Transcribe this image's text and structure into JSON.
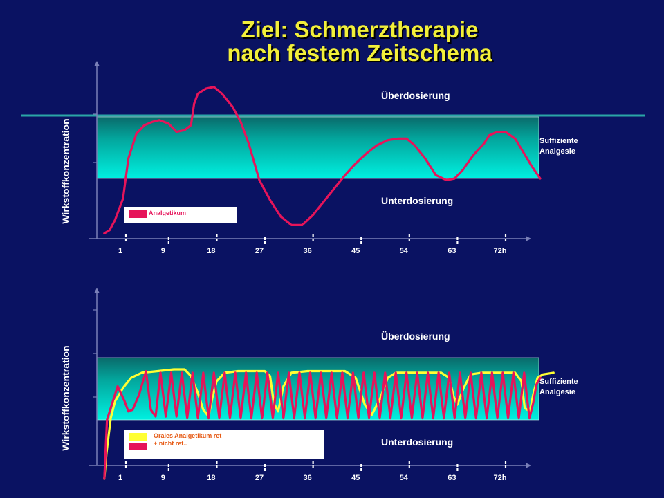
{
  "title": {
    "line1": "Ziel: Schmerztherapie",
    "line2": "nach festem Zeitschema"
  },
  "colors": {
    "background": "#0a1262",
    "band_top": "#0a6a6a",
    "band_bottom": "#00f0e0",
    "series_red": "#e6145a",
    "series_yellow": "#ffff33",
    "title": "#f2ef3a",
    "legend_text": "#e65a14"
  },
  "chart_data": [
    {
      "type": "line",
      "ylabel": "Wirkstoffkonzentration",
      "xlabel": "",
      "x_ticks": [
        "1",
        "9",
        "18",
        "27",
        "36",
        "45",
        "54",
        "63",
        "72h"
      ],
      "xlim": [
        -2,
        81
      ],
      "ylim": [
        0,
        100
      ],
      "band": {
        "low": 35,
        "high": 72
      },
      "zones": {
        "above": "Überdosierung",
        "band": "Suffiziente Analgesie",
        "below": "Unterdosierung"
      },
      "legend": {
        "labels": [
          "Analgetikum"
        ]
      },
      "series": [
        {
          "color": "#e6145a",
          "points": [
            [
              -2,
              2
            ],
            [
              -1,
              4
            ],
            [
              0,
              10
            ],
            [
              1.5,
              23
            ],
            [
              2.5,
              47
            ],
            [
              4,
              62
            ],
            [
              5.5,
              67
            ],
            [
              7,
              69
            ],
            [
              8.3,
              70
            ],
            [
              10,
              68
            ],
            [
              11.5,
              63
            ],
            [
              13,
              64
            ],
            [
              14.2,
              67
            ],
            [
              14.8,
              80
            ],
            [
              15.5,
              86
            ],
            [
              17,
              89
            ],
            [
              18.5,
              90
            ],
            [
              20,
              86
            ],
            [
              22,
              78
            ],
            [
              23.5,
              69
            ],
            [
              25,
              56
            ],
            [
              27,
              34
            ],
            [
              29,
              22
            ],
            [
              31,
              12
            ],
            [
              33,
              7
            ],
            [
              35,
              7
            ],
            [
              37,
              13
            ],
            [
              39,
              21
            ],
            [
              41,
              29
            ],
            [
              43,
              37
            ],
            [
              45,
              44
            ],
            [
              47,
              50
            ],
            [
              49,
              55
            ],
            [
              51,
              58
            ],
            [
              53,
              59
            ],
            [
              54.5,
              59
            ],
            [
              56,
              55
            ],
            [
              58,
              47
            ],
            [
              60,
              37
            ],
            [
              62,
              34
            ],
            [
              63.5,
              35
            ],
            [
              65,
              40
            ],
            [
              67,
              49
            ],
            [
              69,
              56
            ],
            [
              70,
              61
            ],
            [
              71.5,
              63
            ],
            [
              73,
              63
            ],
            [
              74.8,
              59
            ],
            [
              76.5,
              50
            ],
            [
              77.8,
              43
            ],
            [
              79.5,
              35
            ]
          ]
        }
      ]
    },
    {
      "type": "line",
      "ylabel": "Wirkstoffkonzentration",
      "xlabel": "",
      "x_ticks": [
        "1",
        "9",
        "18",
        "27",
        "36",
        "45",
        "54",
        "63",
        "72h"
      ],
      "xlim": [
        -2,
        81
      ],
      "ylim": [
        0,
        100
      ],
      "band": {
        "low": 35,
        "high": 72
      },
      "zones": {
        "above": "Überdosierung",
        "band": "Suffiziente Analgesie",
        "below": "Unterdosierung"
      },
      "legend": {
        "labels": [
          "Orales Analgetikum ret",
          "+ nicht ret.."
        ]
      },
      "series": [
        {
          "color": "#ffff33",
          "points": [
            [
              -2,
              0
            ],
            [
              -1.6,
              15
            ],
            [
              -0.8,
              36
            ],
            [
              0,
              46
            ],
            [
              1.5,
              54
            ],
            [
              3,
              60
            ],
            [
              5,
              63
            ],
            [
              8,
              64
            ],
            [
              11,
              65
            ],
            [
              13,
              65
            ],
            [
              14.2,
              61
            ],
            [
              15.5,
              51
            ],
            [
              16.5,
              41
            ],
            [
              17.5,
              37
            ],
            [
              18.2,
              48
            ],
            [
              19,
              58
            ],
            [
              20.5,
              63
            ],
            [
              23,
              64
            ],
            [
              26,
              64
            ],
            [
              28,
              64
            ],
            [
              29,
              61
            ],
            [
              29.7,
              45
            ],
            [
              30.5,
              40
            ],
            [
              31.5,
              55
            ],
            [
              33,
              63
            ],
            [
              36,
              64
            ],
            [
              40,
              64
            ],
            [
              43,
              64
            ],
            [
              45,
              60
            ],
            [
              46.7,
              44
            ],
            [
              48,
              38
            ],
            [
              49.5,
              47
            ],
            [
              51,
              60
            ],
            [
              52.5,
              63
            ],
            [
              55,
              63
            ],
            [
              59,
              63
            ],
            [
              61,
              63
            ],
            [
              62.5,
              60
            ],
            [
              63.3,
              49
            ],
            [
              64,
              44
            ],
            [
              65.2,
              54
            ],
            [
              66.5,
              62
            ],
            [
              68.5,
              63
            ],
            [
              73,
              63
            ],
            [
              74.8,
              63
            ],
            [
              76,
              58
            ],
            [
              76.6,
              42
            ],
            [
              77.6,
              40
            ],
            [
              78.2,
              50
            ],
            [
              79,
              60
            ],
            [
              80,
              62
            ],
            [
              82,
              63
            ]
          ]
        },
        {
          "color": "#e6145a",
          "points": [
            [
              -2,
              0
            ],
            [
              -1.5,
              35
            ],
            [
              -1,
              40
            ],
            [
              0.5,
              55
            ],
            [
              1.8,
              46
            ],
            [
              2.5,
              40
            ],
            [
              3.3,
              41
            ],
            [
              4.5,
              50
            ],
            [
              5.8,
              64
            ],
            [
              6.7,
              41
            ],
            [
              7.6,
              37
            ],
            [
              8.5,
              63
            ],
            [
              9.5,
              37
            ],
            [
              10.5,
              63
            ],
            [
              11.5,
              37
            ],
            [
              12.5,
              63
            ],
            [
              13.5,
              36
            ],
            [
              14.5,
              63
            ],
            [
              15.5,
              36
            ],
            [
              16.5,
              63
            ],
            [
              17.5,
              36
            ],
            [
              18.5,
              63
            ],
            [
              19.5,
              36
            ],
            [
              20.5,
              63
            ],
            [
              21.5,
              36
            ],
            [
              22.5,
              63
            ],
            [
              23.5,
              36
            ],
            [
              24.5,
              63
            ],
            [
              25.5,
              36
            ],
            [
              26.5,
              63
            ],
            [
              27.5,
              36
            ],
            [
              28.5,
              63
            ],
            [
              29.5,
              36
            ],
            [
              30.5,
              63
            ],
            [
              31.5,
              36
            ],
            [
              32.5,
              63
            ],
            [
              33.5,
              36
            ],
            [
              34.5,
              63
            ],
            [
              35.5,
              36
            ],
            [
              36.5,
              63
            ],
            [
              37.5,
              36
            ],
            [
              38.5,
              63
            ],
            [
              39.5,
              36
            ],
            [
              40.5,
              63
            ],
            [
              41.5,
              36
            ],
            [
              42.5,
              63
            ],
            [
              43.5,
              36
            ],
            [
              44.5,
              63
            ],
            [
              45.5,
              36
            ],
            [
              46.5,
              63
            ],
            [
              47.5,
              36
            ],
            [
              48.5,
              63
            ],
            [
              49.5,
              36
            ],
            [
              50.5,
              63
            ],
            [
              51.5,
              36
            ],
            [
              52.5,
              63
            ],
            [
              53.5,
              36
            ],
            [
              54.5,
              63
            ],
            [
              55.5,
              36
            ],
            [
              56.5,
              63
            ],
            [
              57.5,
              36
            ],
            [
              58.5,
              63
            ],
            [
              59.5,
              36
            ],
            [
              60.5,
              63
            ],
            [
              61.5,
              36
            ],
            [
              62.5,
              63
            ],
            [
              63.5,
              36
            ],
            [
              64.5,
              63
            ],
            [
              65.5,
              36
            ],
            [
              66.5,
              63
            ],
            [
              67.5,
              36
            ],
            [
              68.5,
              63
            ],
            [
              69.5,
              36
            ],
            [
              70.5,
              63
            ],
            [
              71.5,
              36
            ],
            [
              72.5,
              63
            ],
            [
              73.5,
              36
            ],
            [
              74.5,
              63
            ],
            [
              75.5,
              36
            ],
            [
              76.5,
              63
            ],
            [
              77.5,
              36
            ],
            [
              78.2,
              45
            ],
            [
              78.8,
              56
            ],
            [
              79.5,
              60
            ]
          ]
        }
      ]
    }
  ]
}
